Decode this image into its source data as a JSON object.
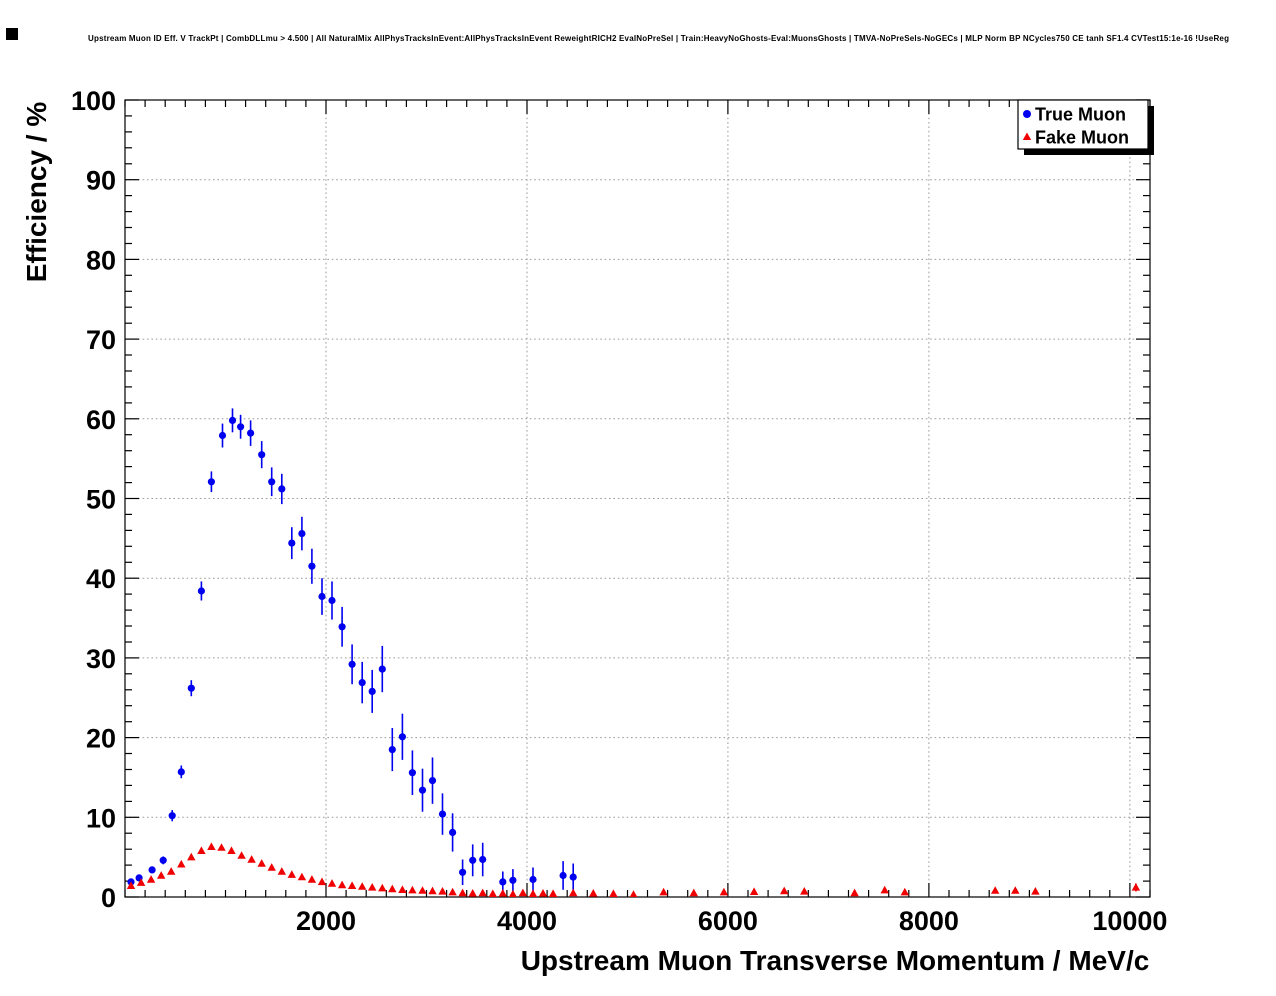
{
  "title": "Upstream Muon ID Eff. V TrackPt | CombDLLmu > 4.500 | All NaturalMix AllPhysTracksInEvent:AllPhysTracksInEvent ReweightRICH2 EvalNoPreSel | Train:HeavyNoGhosts-Eval:MuonsGhosts | TMVA-NoPreSels-NoGECs | MLP Norm BP NCycles750 CE tanh SF1.4 CVTest15:1e-16 !UseReg",
  "colors": {
    "true_muon": "#0000f0",
    "fake_muon": "#f00000",
    "grid": "#9a9a9a",
    "frame": "#000000",
    "background": "#ffffff"
  },
  "chart_data": {
    "type": "scatter",
    "title": "Upstream Muon ID Eff. V TrackPt | CombDLLmu > 4.500 | All NaturalMix AllPhysTracksInEvent:AllPhysTracksInEvent ReweightRICH2 EvalNoPreSel | Train:HeavyNoGhosts-Eval:MuonsGhosts | TMVA-NoPreSels-NoGECs | MLP Norm BP NCycles750 CE tanh SF1.4 CVTest15:1e-16 !UseReg",
    "xlabel": "Upstream Muon Transverse Momentum / MeV/c",
    "ylabel": "Efficiency / %",
    "xlim": [
      0,
      10200
    ],
    "ylim": [
      0,
      100
    ],
    "x_major_ticks": [
      2000,
      4000,
      6000,
      8000,
      10000
    ],
    "x_minor_step": 200,
    "y_major_ticks": [
      0,
      10,
      20,
      30,
      40,
      50,
      60,
      70,
      80,
      90,
      100
    ],
    "y_minor_step": 2,
    "grid": true,
    "legend": {
      "position": "top-right",
      "entries": [
        {
          "label": "True Muon",
          "marker": "circle",
          "color": "#0000f0"
        },
        {
          "label": "Fake Muon",
          "marker": "triangle",
          "color": "#f00000"
        }
      ]
    },
    "series": [
      {
        "name": "True Muon",
        "marker": "circle",
        "color": "#0000f0",
        "points": [
          [
            60,
            1.9,
            0.3
          ],
          [
            140,
            2.4,
            0.3
          ],
          [
            270,
            3.4,
            0.4
          ],
          [
            380,
            4.6,
            0.5
          ],
          [
            470,
            10.2,
            0.7
          ],
          [
            560,
            15.7,
            0.8
          ],
          [
            660,
            26.2,
            1.0
          ],
          [
            760,
            38.4,
            1.2
          ],
          [
            860,
            52.1,
            1.3
          ],
          [
            970,
            57.9,
            1.5
          ],
          [
            1070,
            59.8,
            1.5
          ],
          [
            1150,
            59.0,
            1.5
          ],
          [
            1250,
            58.2,
            1.6
          ],
          [
            1360,
            55.5,
            1.7
          ],
          [
            1460,
            52.1,
            1.8
          ],
          [
            1560,
            51.2,
            1.9
          ],
          [
            1660,
            44.4,
            2.0
          ],
          [
            1760,
            45.6,
            2.1
          ],
          [
            1860,
            41.5,
            2.2
          ],
          [
            1960,
            37.7,
            2.3
          ],
          [
            2060,
            37.2,
            2.4
          ],
          [
            2160,
            33.9,
            2.5
          ],
          [
            2260,
            29.2,
            2.5
          ],
          [
            2360,
            26.9,
            2.6
          ],
          [
            2460,
            25.8,
            2.7
          ],
          [
            2560,
            28.6,
            2.9
          ],
          [
            2660,
            18.5,
            2.7
          ],
          [
            2760,
            20.1,
            2.9
          ],
          [
            2860,
            15.6,
            2.8
          ],
          [
            2960,
            13.4,
            2.7
          ],
          [
            3060,
            14.6,
            2.9
          ],
          [
            3160,
            10.4,
            2.6
          ],
          [
            3260,
            8.1,
            2.4
          ],
          [
            3360,
            3.1,
            1.6
          ],
          [
            3460,
            4.6,
            2.0
          ],
          [
            3560,
            4.7,
            2.1
          ],
          [
            3760,
            1.9,
            1.3
          ],
          [
            3860,
            2.1,
            1.4
          ],
          [
            4060,
            2.2,
            1.5
          ],
          [
            4360,
            2.7,
            1.8
          ],
          [
            4460,
            2.5,
            1.7
          ]
        ]
      },
      {
        "name": "Fake Muon",
        "marker": "triangle",
        "color": "#f00000",
        "points": [
          [
            60,
            1.4,
            0.1
          ],
          [
            160,
            1.8,
            0.1
          ],
          [
            260,
            2.2,
            0.1
          ],
          [
            360,
            2.7,
            0.1
          ],
          [
            460,
            3.2,
            0.1
          ],
          [
            560,
            4.1,
            0.1
          ],
          [
            660,
            5.0,
            0.1
          ],
          [
            760,
            5.8,
            0.15
          ],
          [
            860,
            6.3,
            0.15
          ],
          [
            960,
            6.2,
            0.15
          ],
          [
            1060,
            5.8,
            0.15
          ],
          [
            1160,
            5.2,
            0.15
          ],
          [
            1260,
            4.7,
            0.15
          ],
          [
            1360,
            4.2,
            0.15
          ],
          [
            1460,
            3.7,
            0.15
          ],
          [
            1560,
            3.2,
            0.15
          ],
          [
            1660,
            2.8,
            0.1
          ],
          [
            1760,
            2.5,
            0.1
          ],
          [
            1860,
            2.2,
            0.1
          ],
          [
            1960,
            1.9,
            0.1
          ],
          [
            2060,
            1.7,
            0.1
          ],
          [
            2160,
            1.5,
            0.1
          ],
          [
            2260,
            1.4,
            0.1
          ],
          [
            2360,
            1.3,
            0.1
          ],
          [
            2460,
            1.2,
            0.1
          ],
          [
            2560,
            1.1,
            0.1
          ],
          [
            2660,
            1.0,
            0.1
          ],
          [
            2760,
            0.9,
            0.1
          ],
          [
            2860,
            0.85,
            0.1
          ],
          [
            2960,
            0.8,
            0.1
          ],
          [
            3060,
            0.75,
            0.1
          ],
          [
            3160,
            0.7,
            0.1
          ],
          [
            3260,
            0.6,
            0.1
          ],
          [
            3360,
            0.5,
            0.1
          ],
          [
            3460,
            0.45,
            0.1
          ],
          [
            3560,
            0.5,
            0.1
          ],
          [
            3660,
            0.4,
            0.1
          ],
          [
            3760,
            0.45,
            0.1
          ],
          [
            3860,
            0.35,
            0.1
          ],
          [
            3960,
            0.5,
            0.1
          ],
          [
            4060,
            0.4,
            0.1
          ],
          [
            4160,
            0.45,
            0.1
          ],
          [
            4260,
            0.4,
            0.1
          ],
          [
            4460,
            0.5,
            0.12
          ],
          [
            4660,
            0.45,
            0.12
          ],
          [
            4860,
            0.4,
            0.12
          ],
          [
            5060,
            0.3,
            0.12
          ],
          [
            5360,
            0.6,
            0.15
          ],
          [
            5660,
            0.5,
            0.15
          ],
          [
            5960,
            0.6,
            0.15
          ],
          [
            6260,
            0.65,
            0.18
          ],
          [
            6560,
            0.75,
            0.2
          ],
          [
            6760,
            0.7,
            0.2
          ],
          [
            7260,
            0.5,
            0.2
          ],
          [
            7560,
            0.85,
            0.25
          ],
          [
            7760,
            0.6,
            0.22
          ],
          [
            8660,
            0.8,
            0.25
          ],
          [
            8860,
            0.8,
            0.25
          ],
          [
            9060,
            0.7,
            0.25
          ],
          [
            10060,
            1.2,
            0.5
          ]
        ]
      }
    ]
  }
}
